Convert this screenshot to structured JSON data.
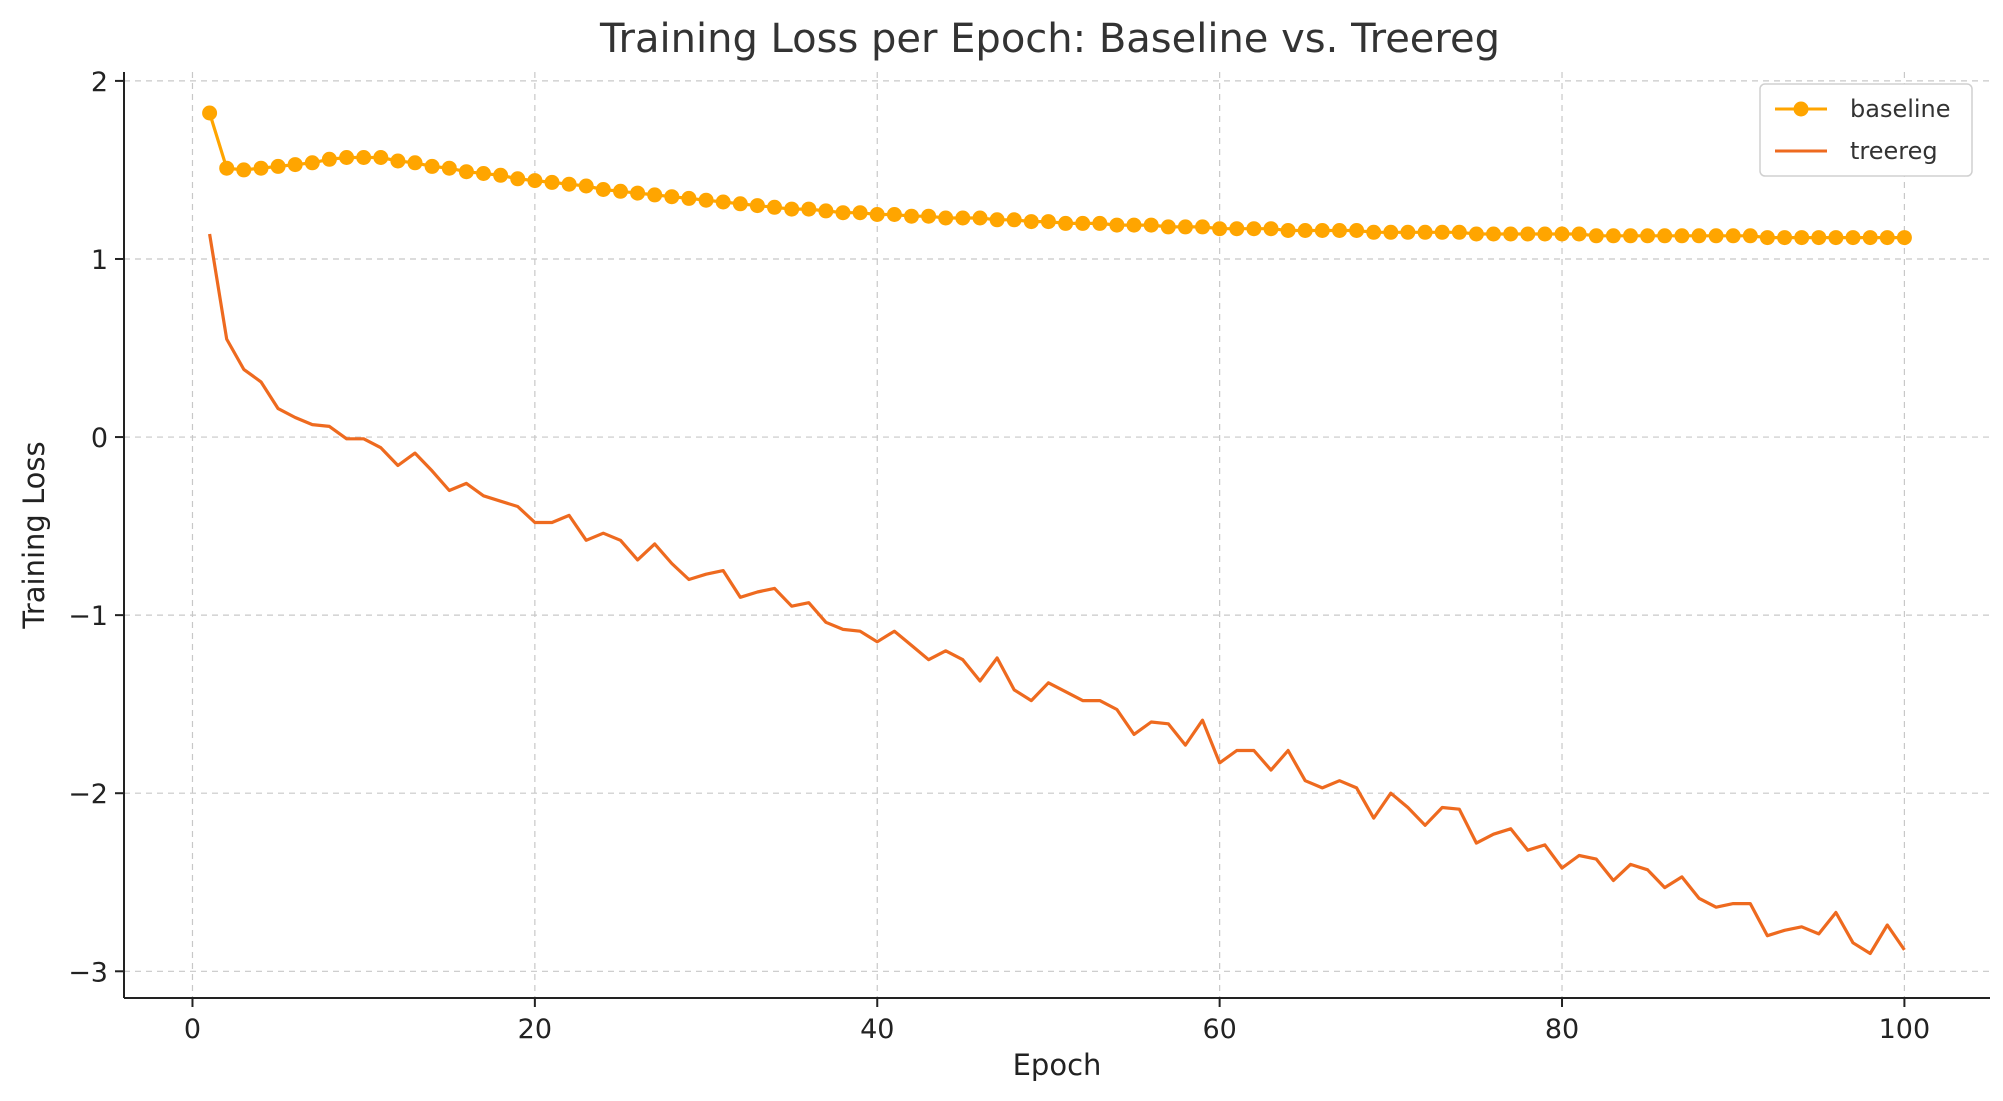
{
  "chart_data": {
    "type": "line",
    "title": "Training Loss per Epoch: Baseline vs. Treereg",
    "xlabel": "Epoch",
    "ylabel": "Training Loss",
    "xlim": [
      -4,
      105
    ],
    "ylim": [
      -3.15,
      2.05
    ],
    "xticks": [
      0,
      20,
      40,
      60,
      80,
      100
    ],
    "yticks": [
      -3,
      -2,
      -1,
      0,
      1,
      2
    ],
    "xtick_labels": [
      "0",
      "20",
      "40",
      "60",
      "80",
      "100"
    ],
    "ytick_labels": [
      "−3",
      "−2",
      "−1",
      "0",
      "1",
      "2"
    ],
    "grid": true,
    "legend_position": "top-right",
    "x": [
      1,
      2,
      3,
      4,
      5,
      6,
      7,
      8,
      9,
      10,
      11,
      12,
      13,
      14,
      15,
      16,
      17,
      18,
      19,
      20,
      21,
      22,
      23,
      24,
      25,
      26,
      27,
      28,
      29,
      30,
      31,
      32,
      33,
      34,
      35,
      36,
      37,
      38,
      39,
      40,
      41,
      42,
      43,
      44,
      45,
      46,
      47,
      48,
      49,
      50,
      51,
      52,
      53,
      54,
      55,
      56,
      57,
      58,
      59,
      60,
      61,
      62,
      63,
      64,
      65,
      66,
      67,
      68,
      69,
      70,
      71,
      72,
      73,
      74,
      75,
      76,
      77,
      78,
      79,
      80,
      81,
      82,
      83,
      84,
      85,
      86,
      87,
      88,
      89,
      90,
      91,
      92,
      93,
      94,
      95,
      96,
      97,
      98,
      99,
      100
    ],
    "series": [
      {
        "name": "baseline",
        "color": "#FFA500",
        "marker": "circle",
        "values": [
          1.82,
          1.51,
          1.5,
          1.51,
          1.52,
          1.53,
          1.54,
          1.56,
          1.57,
          1.57,
          1.57,
          1.55,
          1.54,
          1.52,
          1.51,
          1.49,
          1.48,
          1.47,
          1.45,
          1.44,
          1.43,
          1.42,
          1.41,
          1.39,
          1.38,
          1.37,
          1.36,
          1.35,
          1.34,
          1.33,
          1.32,
          1.31,
          1.3,
          1.29,
          1.28,
          1.28,
          1.27,
          1.26,
          1.26,
          1.25,
          1.25,
          1.24,
          1.24,
          1.23,
          1.23,
          1.23,
          1.22,
          1.22,
          1.21,
          1.21,
          1.2,
          1.2,
          1.2,
          1.19,
          1.19,
          1.19,
          1.18,
          1.18,
          1.18,
          1.17,
          1.17,
          1.17,
          1.17,
          1.16,
          1.16,
          1.16,
          1.16,
          1.16,
          1.15,
          1.15,
          1.15,
          1.15,
          1.15,
          1.15,
          1.14,
          1.14,
          1.14,
          1.14,
          1.14,
          1.14,
          1.14,
          1.13,
          1.13,
          1.13,
          1.13,
          1.13,
          1.13,
          1.13,
          1.13,
          1.13,
          1.13,
          1.12,
          1.12,
          1.12,
          1.12,
          1.12,
          1.12,
          1.12,
          1.12,
          1.12
        ]
      },
      {
        "name": "treereg",
        "color": "#EE6A1F",
        "marker": "none",
        "values": [
          1.14,
          0.55,
          0.38,
          0.31,
          0.16,
          0.11,
          0.07,
          0.06,
          -0.01,
          -0.01,
          -0.06,
          -0.16,
          -0.09,
          -0.19,
          -0.3,
          -0.26,
          -0.33,
          -0.36,
          -0.39,
          -0.48,
          -0.48,
          -0.44,
          -0.58,
          -0.54,
          -0.58,
          -0.69,
          -0.6,
          -0.71,
          -0.8,
          -0.77,
          -0.75,
          -0.9,
          -0.87,
          -0.85,
          -0.95,
          -0.93,
          -1.04,
          -1.08,
          -1.09,
          -1.15,
          -1.09,
          -1.17,
          -1.25,
          -1.2,
          -1.25,
          -1.37,
          -1.24,
          -1.42,
          -1.48,
          -1.38,
          -1.43,
          -1.48,
          -1.48,
          -1.53,
          -1.67,
          -1.6,
          -1.61,
          -1.73,
          -1.59,
          -1.83,
          -1.76,
          -1.76,
          -1.87,
          -1.76,
          -1.93,
          -1.97,
          -1.93,
          -1.97,
          -2.14,
          -2.0,
          -2.08,
          -2.18,
          -2.08,
          -2.09,
          -2.28,
          -2.23,
          -2.2,
          -2.32,
          -2.29,
          -2.42,
          -2.35,
          -2.37,
          -2.49,
          -2.4,
          -2.43,
          -2.53,
          -2.47,
          -2.59,
          -2.64,
          -2.62,
          -2.62,
          -2.8,
          -2.77,
          -2.75,
          -2.79,
          -2.67,
          -2.84,
          -2.9,
          -2.74,
          -2.88
        ]
      }
    ]
  }
}
